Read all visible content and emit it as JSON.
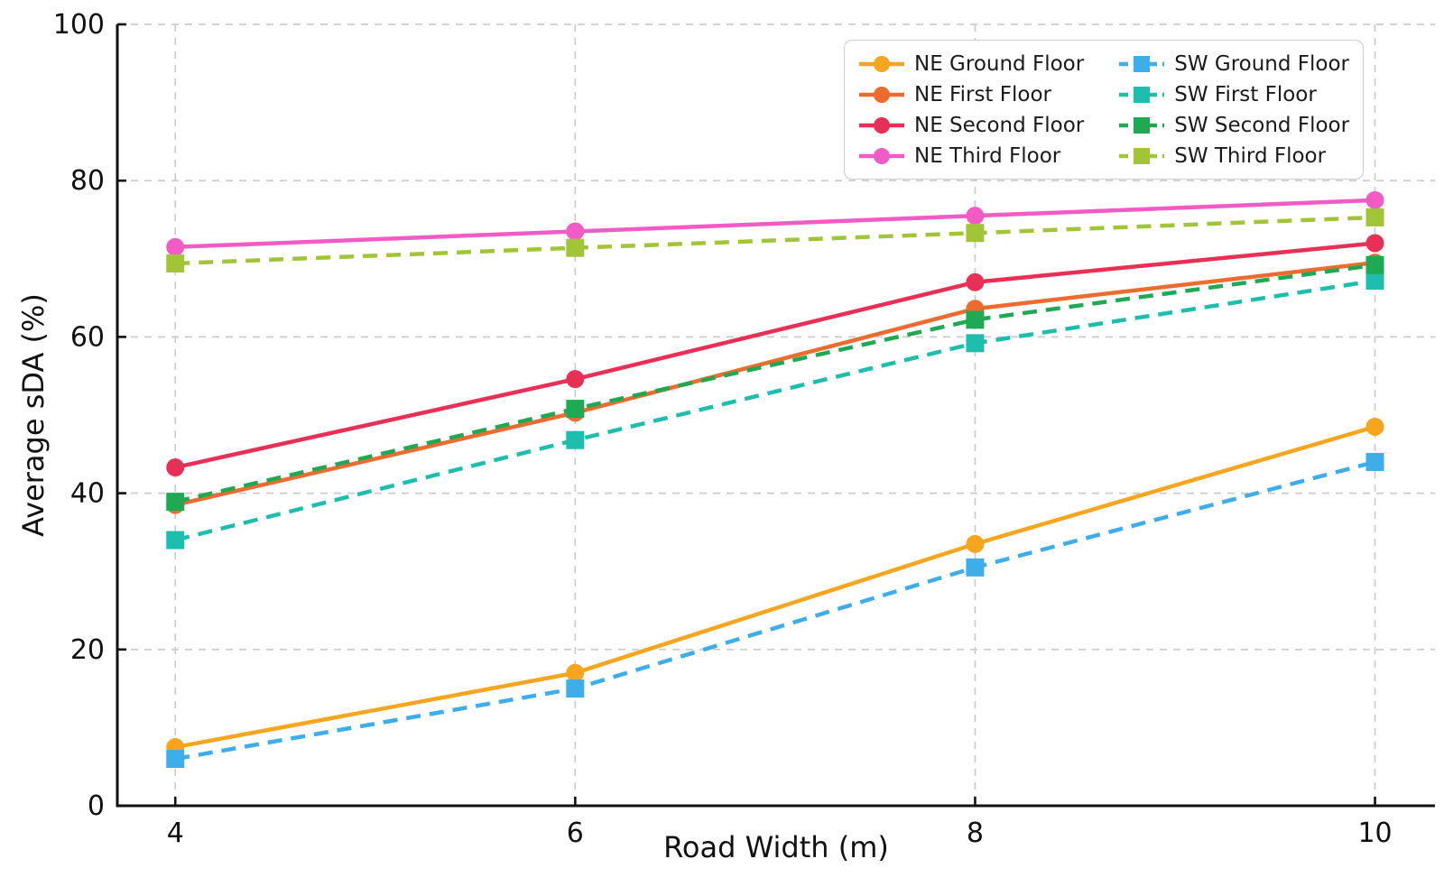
{
  "chart_data": {
    "type": "line",
    "title": "",
    "xlabel": "Road Width (m)",
    "ylabel": "Average sDA (%)",
    "x": [
      4,
      6,
      8,
      10
    ],
    "xticks": [
      4,
      6,
      8,
      10
    ],
    "yticks": [
      0,
      20,
      40,
      60,
      80,
      100
    ],
    "xlim": [
      3.71,
      10.3
    ],
    "ylim": [
      0,
      100
    ],
    "grid": true,
    "grid_style": "dashed",
    "grid_color": "#cbcbcb",
    "axis_color": "#111111",
    "legend_position": "top-right",
    "legend_columns": 2,
    "series": [
      {
        "name": "NE Ground Floor",
        "color": "#F6A51F",
        "line_style": "solid",
        "marker": "circle",
        "values": [
          7.5,
          17.0,
          33.5,
          48.5
        ]
      },
      {
        "name": "NE First Floor",
        "color": "#EC6C2F",
        "line_style": "solid",
        "marker": "circle",
        "values": [
          38.5,
          50.3,
          63.6,
          69.5
        ]
      },
      {
        "name": "NE Second Floor",
        "color": "#E83057",
        "line_style": "solid",
        "marker": "circle",
        "values": [
          43.3,
          54.6,
          67.0,
          72.0
        ]
      },
      {
        "name": "NE Third Floor",
        "color": "#F15BC5",
        "line_style": "solid",
        "marker": "circle",
        "values": [
          71.5,
          73.5,
          75.5,
          77.5
        ]
      },
      {
        "name": "SW Ground Floor",
        "color": "#3DAEE9",
        "line_style": "dashed",
        "marker": "square",
        "values": [
          6.0,
          15.0,
          30.5,
          44.0
        ]
      },
      {
        "name": "SW First Floor",
        "color": "#1CBFAE",
        "line_style": "dashed",
        "marker": "square",
        "values": [
          34.0,
          46.8,
          59.2,
          67.2
        ]
      },
      {
        "name": "SW Second Floor",
        "color": "#1FA953",
        "line_style": "dashed",
        "marker": "square",
        "values": [
          38.9,
          50.8,
          62.2,
          69.2
        ]
      },
      {
        "name": "SW Third Floor",
        "color": "#A2C437",
        "line_style": "dashed",
        "marker": "square",
        "values": [
          69.4,
          71.4,
          73.3,
          75.3
        ]
      }
    ]
  }
}
